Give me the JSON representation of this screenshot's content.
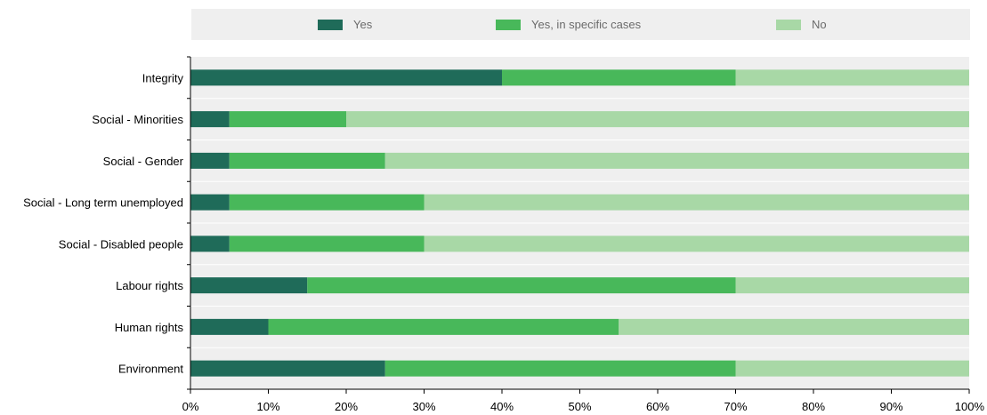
{
  "colors": {
    "yes": "#1f6b59",
    "specific": "#48b85a",
    "no": "#a8d8a6",
    "plot_background": "#efefef",
    "gridline": "#ffffff",
    "axis": "#000000",
    "text": "#000000"
  },
  "chart_data": {
    "type": "bar",
    "orientation": "horizontal",
    "stacked": true,
    "title": "",
    "xlabel": "",
    "ylabel": "",
    "xlim": [
      0,
      100
    ],
    "x_ticks": [
      0,
      10,
      20,
      30,
      40,
      50,
      60,
      70,
      80,
      90,
      100
    ],
    "x_tick_labels": [
      "0%",
      "10%",
      "20%",
      "30%",
      "40%",
      "50%",
      "60%",
      "70%",
      "80%",
      "90%",
      "100%"
    ],
    "grid": true,
    "legend_position": "top",
    "categories": [
      "Integrity",
      "Social - Minorities",
      "Social - Gender ",
      "Social - Long term unemployed",
      "Social - Disabled people",
      "Labour rights",
      "Human rights",
      "Environment"
    ],
    "series": [
      {
        "name": "Yes",
        "color_key": "yes",
        "values": [
          40,
          5,
          5,
          5,
          5,
          15,
          10,
          25
        ]
      },
      {
        "name": "Yes, in specific cases",
        "color_key": "specific",
        "values": [
          30,
          15,
          20,
          25,
          25,
          55,
          45,
          45
        ]
      },
      {
        "name": "No",
        "color_key": "no",
        "values": [
          30,
          80,
          75,
          70,
          70,
          30,
          45,
          30
        ]
      }
    ]
  }
}
